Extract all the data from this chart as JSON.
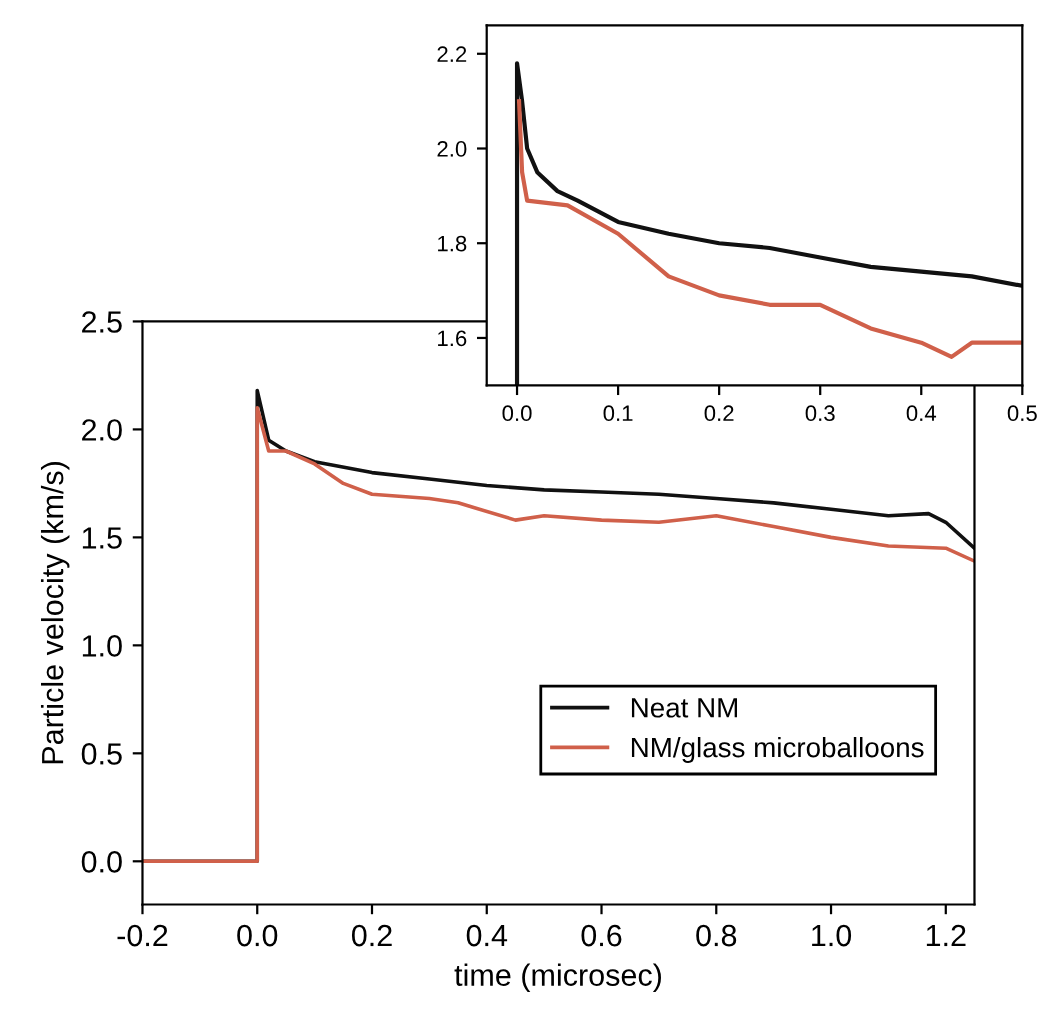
{
  "chart_data": [
    {
      "type": "line",
      "xlabel": "time (microsec)",
      "ylabel": "Particle velocity (km/s)",
      "xlim": [
        -0.2,
        1.25
      ],
      "ylim": [
        -0.2,
        2.5
      ],
      "xticks": [
        {
          "value": -0.2,
          "label": "-0.2"
        },
        {
          "value": 0,
          "label": "0.0"
        },
        0.2,
        0.4,
        0.6,
        0.8,
        {
          "value": 1.0,
          "label": "1.0"
        },
        1.2
      ],
      "yticks": [
        {
          "value": 0,
          "label": "0.0"
        },
        0.5,
        {
          "value": 1.0,
          "label": "1.0"
        },
        1.5,
        {
          "value": 2.0,
          "label": "2.0"
        },
        2.5
      ],
      "legend": "bottom right",
      "grid": false,
      "series": [
        {
          "name": "Neat NM",
          "color": "#111111",
          "x": [
            -0.2,
            -0.1,
            0,
            0,
            0.02,
            0.05,
            0.1,
            0.2,
            0.3,
            0.4,
            0.5,
            0.6,
            0.7,
            0.8,
            0.9,
            1.0,
            1.1,
            1.17,
            1.2,
            1.25
          ],
          "values": [
            0,
            0,
            0,
            2.18,
            1.95,
            1.9,
            1.85,
            1.8,
            1.77,
            1.74,
            1.72,
            1.71,
            1.7,
            1.68,
            1.66,
            1.63,
            1.6,
            1.61,
            1.57,
            1.45
          ]
        },
        {
          "name": "NM/glass microballoons",
          "color": "#d0604a",
          "x": [
            -0.2,
            -0.1,
            0,
            0,
            0.02,
            0.05,
            0.1,
            0.15,
            0.2,
            0.3,
            0.35,
            0.45,
            0.5,
            0.6,
            0.7,
            0.8,
            0.9,
            1.0,
            1.1,
            1.2,
            1.25
          ],
          "values": [
            0,
            0,
            0,
            2.1,
            1.9,
            1.9,
            1.84,
            1.75,
            1.7,
            1.68,
            1.66,
            1.58,
            1.6,
            1.58,
            1.57,
            1.6,
            1.55,
            1.5,
            1.46,
            1.45,
            1.39
          ]
        }
      ]
    },
    {
      "type": "line",
      "xlim": [
        -0.03,
        0.5
      ],
      "ylim": [
        1.5,
        2.26
      ],
      "xticks": [
        {
          "value": 0,
          "label": "0.0"
        },
        0.1,
        0.2,
        0.3,
        0.4,
        0.5
      ],
      "yticks": [
        1.6,
        1.8,
        {
          "value": 2.0,
          "label": "2.0"
        },
        2.2
      ],
      "grid": false,
      "series": [
        {
          "color": "#111111",
          "x": [
            0,
            0,
            0.005,
            0.01,
            0.02,
            0.04,
            0.06,
            0.1,
            0.15,
            0.2,
            0.25,
            0.3,
            0.35,
            0.4,
            0.45,
            0.5
          ],
          "values": [
            1.5,
            2.18,
            2.1,
            2.0,
            1.95,
            1.91,
            1.89,
            1.845,
            1.82,
            1.8,
            1.79,
            1.77,
            1.75,
            1.74,
            1.73,
            1.71
          ]
        },
        {
          "color": "#d0604a",
          "x": [
            0.002,
            0.005,
            0.01,
            0.05,
            0.1,
            0.15,
            0.2,
            0.25,
            0.3,
            0.35,
            0.4,
            0.43,
            0.45,
            0.5
          ],
          "values": [
            2.1,
            1.95,
            1.89,
            1.88,
            1.82,
            1.73,
            1.69,
            1.67,
            1.67,
            1.62,
            1.59,
            1.56,
            1.59,
            1.59
          ]
        }
      ]
    }
  ]
}
